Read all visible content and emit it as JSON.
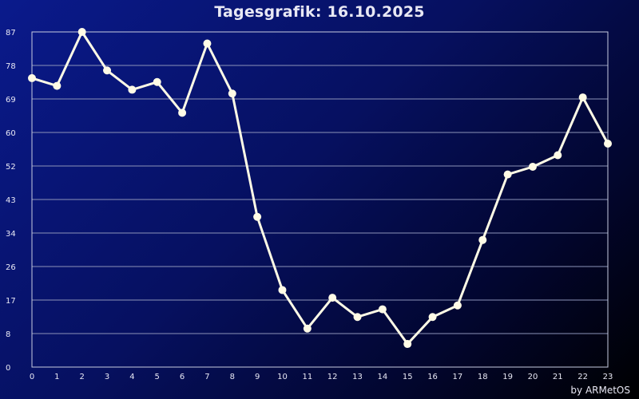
{
  "chart_data": {
    "type": "line",
    "title": "Tagesgrafik: 16.10.2025",
    "xlabel": "",
    "ylabel": "",
    "x": [
      0,
      1,
      2,
      3,
      4,
      5,
      6,
      7,
      8,
      9,
      10,
      11,
      12,
      13,
      14,
      15,
      16,
      17,
      18,
      19,
      20,
      21,
      22,
      23
    ],
    "x_tick_labels": [
      "0",
      "1",
      "2",
      "3",
      "4",
      "5",
      "6",
      "7",
      "8",
      "9",
      "10",
      "11",
      "12",
      "13",
      "14",
      "15",
      "16",
      "17",
      "18",
      "19",
      "20",
      "21",
      "22",
      "23"
    ],
    "series": [
      {
        "values": [
          75,
          73,
          87,
          77,
          72,
          74,
          66,
          84,
          71,
          39,
          20,
          10,
          18,
          13,
          15,
          6,
          13,
          16,
          33,
          50,
          52,
          55,
          70,
          58
        ]
      }
    ],
    "y_tick_labels": [
      "0",
      "8",
      "17",
      "26",
      "34",
      "43",
      "52",
      "60",
      "69",
      "78",
      "87"
    ],
    "ylim": [
      0,
      87
    ],
    "grid": true,
    "colors": {
      "line": "#fffbe6",
      "grid": "#8c93b8",
      "text": "#e8e8f4"
    }
  },
  "footer": "by ARMetOS"
}
